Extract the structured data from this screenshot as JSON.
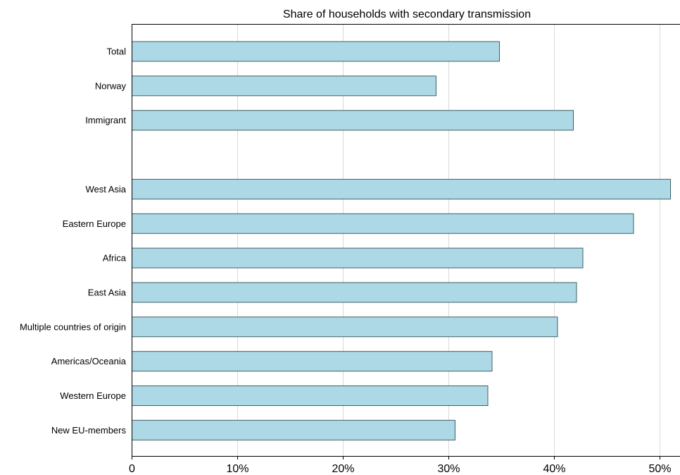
{
  "chart_data": {
    "type": "bar",
    "orientation": "horizontal",
    "title": "Share of households with secondary transmission",
    "xlabel": "",
    "ylabel": "",
    "xlim": [
      0,
      52
    ],
    "grid": true,
    "categories": [
      "Total",
      "Norway",
      "Immigrant",
      "",
      "West Asia",
      "Eastern Europe",
      "Africa",
      "East Asia",
      "Multiple countries of origin",
      "Americas/Oceania",
      "Western Europe",
      "New EU-members"
    ],
    "values": [
      34.8,
      28.8,
      41.8,
      null,
      51.0,
      47.5,
      42.7,
      42.1,
      40.3,
      34.1,
      33.7,
      30.6
    ],
    "x_ticks": [
      0,
      10,
      20,
      30,
      40,
      50
    ],
    "x_tick_labels": [
      "0",
      "10%",
      "20%",
      "30%",
      "40%",
      "50%"
    ],
    "bar_color": "#add8e6"
  }
}
